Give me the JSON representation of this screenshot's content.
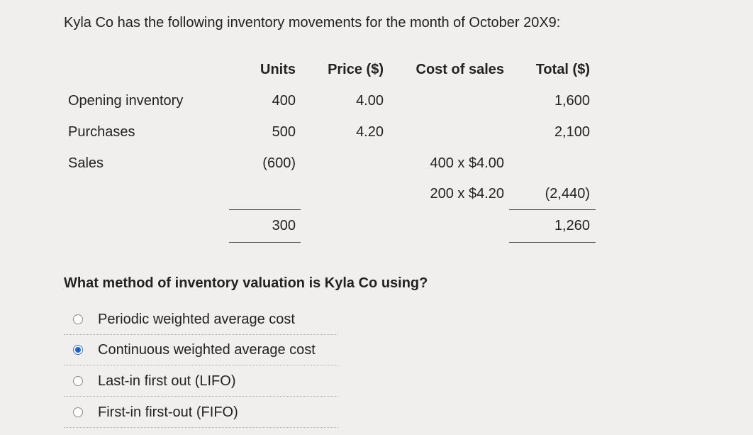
{
  "intro": "Kyla Co has the following inventory movements for the month of October 20X9:",
  "table": {
    "headers": {
      "units": "Units",
      "price": "Price ($)",
      "cost_of_sales": "Cost of sales",
      "total": "Total ($)"
    },
    "rows": [
      {
        "label": "Opening inventory",
        "units": "400",
        "price": "4.00",
        "cost_of_sales": "",
        "total": "1,600"
      },
      {
        "label": "Purchases",
        "units": "500",
        "price": "4.20",
        "cost_of_sales": "",
        "total": "2,100"
      },
      {
        "label": "Sales",
        "units": "(600)",
        "price": "",
        "cost_of_sales": "400 x $4.00",
        "total": ""
      },
      {
        "label": "",
        "units": "",
        "price": "",
        "cost_of_sales": "200 x $4.20",
        "total": "(2,440)"
      }
    ],
    "totals": {
      "units": "300",
      "total": "1,260"
    }
  },
  "question": "What method of inventory valuation is Kyla Co using?",
  "options": [
    {
      "label": "Periodic weighted average cost",
      "selected": false
    },
    {
      "label": "Continuous weighted average cost",
      "selected": true
    },
    {
      "label": "Last-in first out (LIFO)",
      "selected": false
    },
    {
      "label": "First-in first-out (FIFO)",
      "selected": false
    }
  ],
  "colors": {
    "background": "#f1efed",
    "radio_selected": "#1f63c7"
  }
}
